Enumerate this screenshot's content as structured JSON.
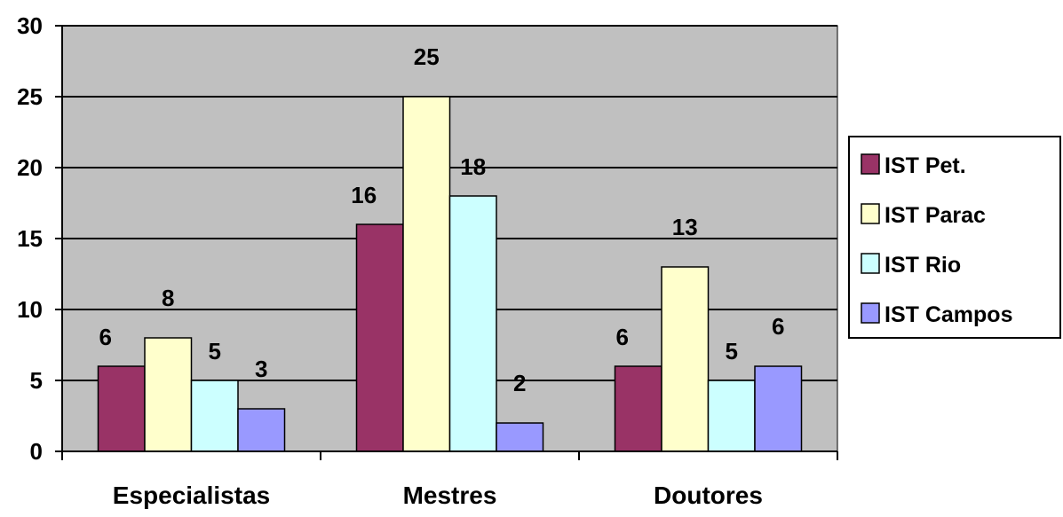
{
  "chart_data": {
    "type": "bar",
    "categories": [
      "Especialistas",
      "Mestres",
      "Doutores"
    ],
    "series": [
      {
        "name": "IST Pet.",
        "values": [
          6,
          16,
          6
        ],
        "color": "#993366"
      },
      {
        "name": "IST Parac",
        "values": [
          8,
          25,
          13
        ],
        "color": "#FFFFCC"
      },
      {
        "name": "IST Rio",
        "values": [
          5,
          18,
          5
        ],
        "color": "#CCFFFF"
      },
      {
        "name": "IST Campos",
        "values": [
          3,
          2,
          6
        ],
        "color": "#9999FF"
      }
    ],
    "yticks": [
      "0",
      "5",
      "10",
      "15",
      "20",
      "25",
      "30"
    ],
    "ylim": [
      0,
      30
    ],
    "grid": true,
    "plot_background": "#C0C0C0",
    "legend_position": "right",
    "title": "",
    "xlabel": "",
    "ylabel": ""
  }
}
